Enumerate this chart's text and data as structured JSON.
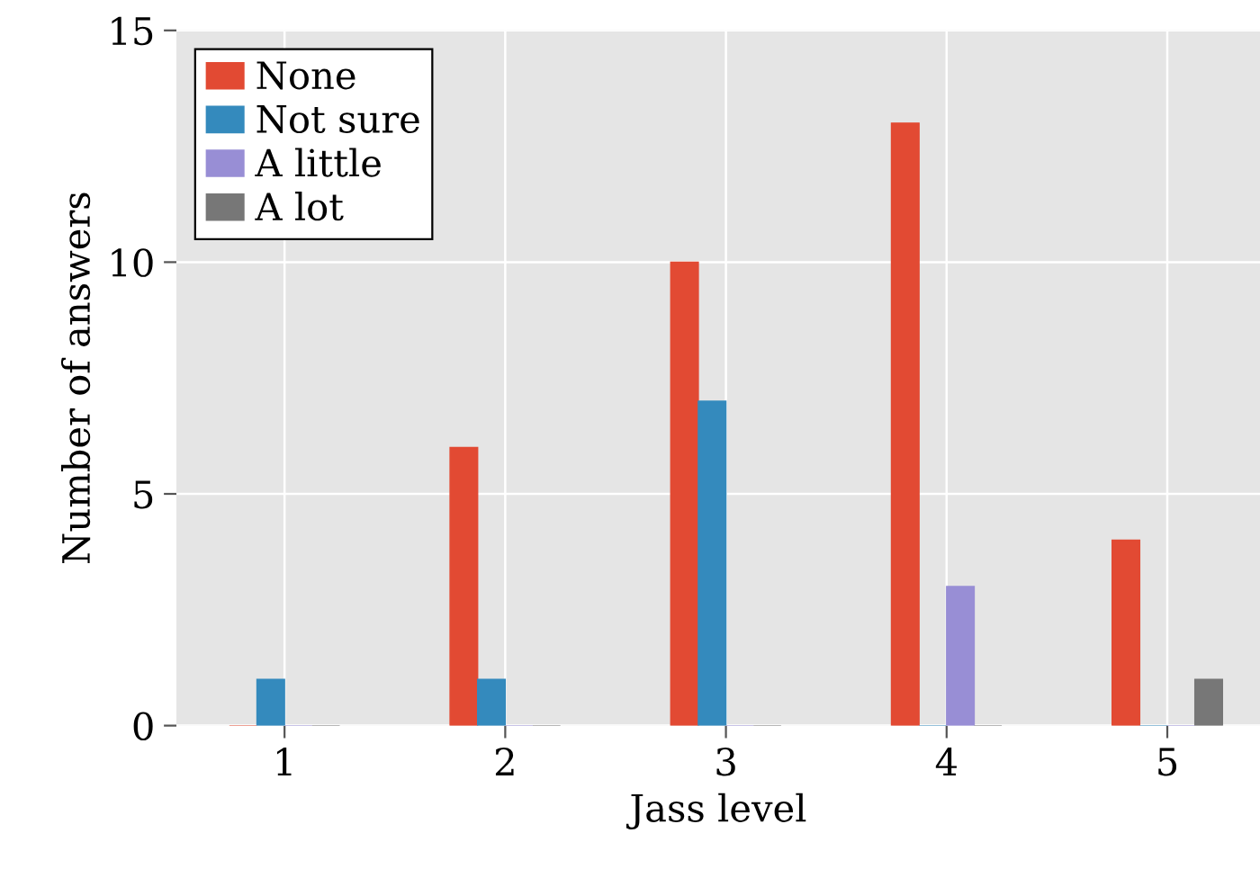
{
  "chart_data": {
    "type": "bar",
    "xlabel": "Jass level",
    "ylabel": "Number of answers",
    "x": [
      1,
      2,
      3,
      4,
      5
    ],
    "series": [
      {
        "name": "None",
        "color": "#e24a33",
        "values": [
          0,
          6,
          10,
          13,
          4
        ]
      },
      {
        "name": "Not sure",
        "color": "#348abd",
        "values": [
          1,
          1,
          7,
          0,
          0
        ]
      },
      {
        "name": "A little",
        "color": "#988ed5",
        "values": [
          0,
          0,
          0,
          3,
          0
        ]
      },
      {
        "name": "A lot",
        "color": "#777777",
        "values": [
          0,
          0,
          0,
          0,
          1
        ]
      }
    ],
    "xlim": [
      0.51,
      5.42
    ],
    "xticks": [
      1,
      2,
      3,
      4,
      5
    ],
    "ylim": [
      0,
      15
    ],
    "yticks": [
      0,
      5,
      10,
      15
    ],
    "grid": true,
    "legend": "top left"
  }
}
